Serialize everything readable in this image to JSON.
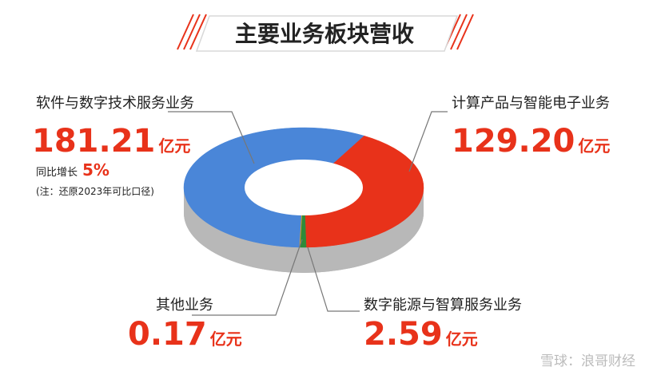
{
  "chart_data": {
    "type": "donut",
    "title": "主要业务板块营收",
    "unit": "亿元",
    "categories": [
      "软件与数字技术服务业务",
      "计算产品与智能电子业务",
      "数字能源与智算服务业务",
      "其他业务"
    ],
    "values": [
      181.21,
      129.2,
      2.59,
      0.17
    ],
    "value_labels": [
      "181.21",
      "129.20",
      "2.59",
      "0.17"
    ],
    "colors": [
      "#4a86d8",
      "#e8321a",
      "#2e8b3a",
      "#e8a020"
    ],
    "growth": {
      "label": "同比增长",
      "value": 5,
      "value_label": "5%"
    },
    "note": "(注：还原2023年可比口径)"
  },
  "watermark": "雪球：浪哥财经"
}
